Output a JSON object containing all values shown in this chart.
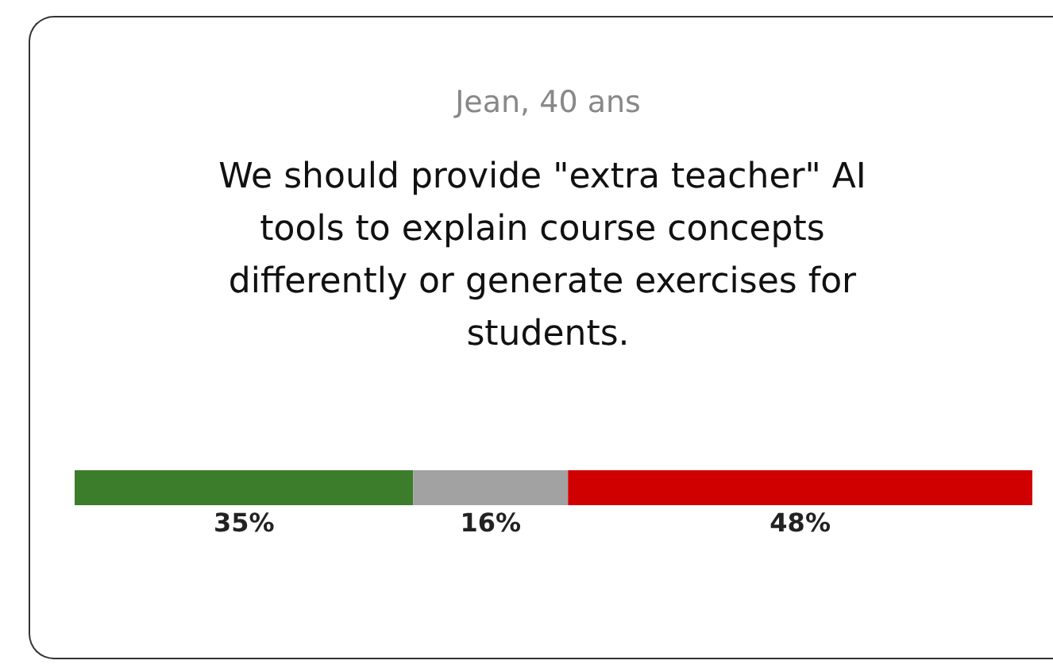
{
  "chart_data": {
    "type": "bar",
    "orientation": "horizontal",
    "stacked": true,
    "subtitle": "Jean, 40 ans",
    "title": "We should provide \"extra teacher\" AI tools to explain course concepts differently or generate exercises for students.",
    "categories": [
      null
    ],
    "series": [
      {
        "color": "#3b7d2a",
        "values": [
          35
        ],
        "value_labels": [
          "35%"
        ]
      },
      {
        "color": "#a2a2a2",
        "values": [
          16
        ],
        "value_labels": [
          "16%"
        ]
      },
      {
        "color": "#d10000",
        "values": [
          48
        ],
        "value_labels": [
          "48%"
        ]
      }
    ]
  }
}
